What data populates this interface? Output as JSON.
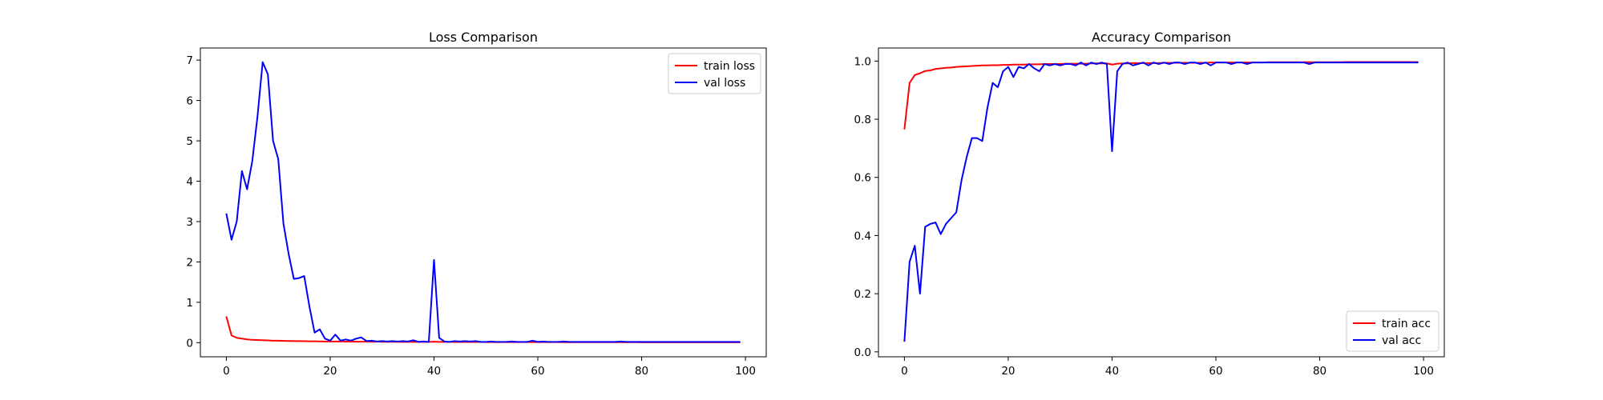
{
  "chart_data": [
    {
      "type": "line",
      "title": "Loss Comparison",
      "xlabel": "",
      "ylabel": "",
      "xlim": [
        -5,
        104
      ],
      "ylim": [
        -0.35,
        7.3
      ],
      "xticks": [
        0,
        20,
        40,
        60,
        80,
        100
      ],
      "yticks": [
        0,
        1,
        2,
        3,
        4,
        5,
        6,
        7
      ],
      "grid": false,
      "legend": "top-right",
      "series": [
        {
          "name": "train loss",
          "color": "#ff0000",
          "x": [
            0,
            1,
            2,
            3,
            4,
            5,
            6,
            7,
            8,
            9,
            10,
            11,
            12,
            13,
            14,
            15,
            16,
            17,
            18,
            19,
            20,
            21,
            22,
            23,
            24,
            25,
            26,
            27,
            28,
            29,
            30,
            31,
            32,
            33,
            34,
            35,
            36,
            37,
            38,
            39,
            40,
            41,
            42,
            43,
            44,
            45,
            46,
            47,
            48,
            49,
            50,
            51,
            52,
            53,
            54,
            55,
            56,
            57,
            58,
            59,
            60,
            61,
            62,
            63,
            64,
            65,
            66,
            67,
            68,
            69,
            70,
            71,
            72,
            73,
            74,
            75,
            76,
            77,
            78,
            79,
            80,
            81,
            82,
            83,
            84,
            85,
            86,
            87,
            88,
            89,
            90,
            91,
            92,
            93,
            94,
            95,
            96,
            97,
            98,
            99
          ],
          "values": [
            0.65,
            0.18,
            0.12,
            0.1,
            0.08,
            0.07,
            0.065,
            0.06,
            0.055,
            0.05,
            0.048,
            0.045,
            0.042,
            0.04,
            0.038,
            0.036,
            0.035,
            0.033,
            0.032,
            0.03,
            0.03,
            0.029,
            0.028,
            0.027,
            0.026,
            0.025,
            0.025,
            0.024,
            0.023,
            0.023,
            0.022,
            0.022,
            0.021,
            0.021,
            0.02,
            0.02,
            0.02,
            0.019,
            0.019,
            0.019,
            0.025,
            0.02,
            0.018,
            0.018,
            0.017,
            0.017,
            0.017,
            0.016,
            0.016,
            0.016,
            0.015,
            0.015,
            0.015,
            0.015,
            0.014,
            0.014,
            0.014,
            0.014,
            0.014,
            0.013,
            0.013,
            0.013,
            0.013,
            0.013,
            0.013,
            0.012,
            0.012,
            0.012,
            0.012,
            0.012,
            0.012,
            0.012,
            0.011,
            0.011,
            0.011,
            0.011,
            0.011,
            0.011,
            0.011,
            0.011,
            0.01,
            0.01,
            0.01,
            0.01,
            0.01,
            0.01,
            0.01,
            0.01,
            0.01,
            0.01,
            0.01,
            0.01,
            0.01,
            0.01,
            0.01,
            0.01,
            0.01,
            0.01,
            0.01,
            0.01
          ]
        },
        {
          "name": "val loss",
          "color": "#0000ff",
          "x": [
            0,
            1,
            2,
            3,
            4,
            5,
            6,
            7,
            8,
            9,
            10,
            11,
            12,
            13,
            14,
            15,
            16,
            17,
            18,
            19,
            20,
            21,
            22,
            23,
            24,
            25,
            26,
            27,
            28,
            29,
            30,
            31,
            32,
            33,
            34,
            35,
            36,
            37,
            38,
            39,
            40,
            41,
            42,
            43,
            44,
            45,
            46,
            47,
            48,
            49,
            50,
            51,
            52,
            53,
            54,
            55,
            56,
            57,
            58,
            59,
            60,
            61,
            62,
            63,
            64,
            65,
            66,
            67,
            68,
            69,
            70,
            71,
            72,
            73,
            74,
            75,
            76,
            77,
            78,
            79,
            80,
            81,
            82,
            83,
            84,
            85,
            86,
            87,
            88,
            89,
            90,
            91,
            92,
            93,
            94,
            95,
            96,
            97,
            98,
            99
          ],
          "values": [
            3.2,
            2.55,
            3.0,
            4.25,
            3.8,
            4.5,
            5.6,
            6.95,
            6.65,
            5.0,
            4.55,
            2.95,
            2.2,
            1.58,
            1.6,
            1.65,
            0.9,
            0.25,
            0.33,
            0.1,
            0.05,
            0.2,
            0.05,
            0.08,
            0.05,
            0.1,
            0.13,
            0.04,
            0.05,
            0.03,
            0.04,
            0.03,
            0.04,
            0.03,
            0.04,
            0.03,
            0.06,
            0.02,
            0.03,
            0.02,
            2.05,
            0.12,
            0.03,
            0.02,
            0.04,
            0.03,
            0.04,
            0.03,
            0.04,
            0.02,
            0.02,
            0.03,
            0.02,
            0.02,
            0.02,
            0.03,
            0.02,
            0.02,
            0.02,
            0.05,
            0.02,
            0.03,
            0.02,
            0.02,
            0.02,
            0.03,
            0.02,
            0.02,
            0.02,
            0.02,
            0.02,
            0.02,
            0.02,
            0.02,
            0.02,
            0.02,
            0.03,
            0.02,
            0.02,
            0.02,
            0.02,
            0.02,
            0.02,
            0.02,
            0.02,
            0.02,
            0.02,
            0.02,
            0.02,
            0.02,
            0.02,
            0.02,
            0.02,
            0.02,
            0.02,
            0.02,
            0.02,
            0.02,
            0.02,
            0.02
          ]
        }
      ]
    },
    {
      "type": "line",
      "title": "Accuracy Comparison",
      "xlabel": "",
      "ylabel": "",
      "xlim": [
        -5,
        104
      ],
      "ylim": [
        -0.017,
        1.045
      ],
      "xticks": [
        0,
        20,
        40,
        60,
        80,
        100
      ],
      "yticks": [
        0.0,
        0.2,
        0.4,
        0.6,
        0.8,
        1.0
      ],
      "yticklabels": [
        "0.0",
        "0.2",
        "0.4",
        "0.6",
        "0.8",
        "1.0"
      ],
      "grid": false,
      "legend": "bottom-right",
      "series": [
        {
          "name": "train acc",
          "color": "#ff0000",
          "x": [
            0,
            1,
            2,
            3,
            4,
            5,
            6,
            7,
            8,
            9,
            10,
            11,
            12,
            13,
            14,
            15,
            16,
            17,
            18,
            19,
            20,
            21,
            22,
            23,
            24,
            25,
            26,
            27,
            28,
            29,
            30,
            31,
            32,
            33,
            34,
            35,
            36,
            37,
            38,
            39,
            40,
            41,
            42,
            43,
            44,
            45,
            46,
            47,
            48,
            49,
            50,
            51,
            52,
            53,
            54,
            55,
            56,
            57,
            58,
            59,
            60,
            61,
            62,
            63,
            64,
            65,
            66,
            67,
            68,
            69,
            70,
            71,
            72,
            73,
            74,
            75,
            76,
            77,
            78,
            79,
            80,
            81,
            82,
            83,
            84,
            85,
            86,
            87,
            88,
            89,
            90,
            91,
            92,
            93,
            94,
            95,
            96,
            97,
            98,
            99
          ],
          "values": [
            0.765,
            0.925,
            0.952,
            0.958,
            0.966,
            0.968,
            0.973,
            0.975,
            0.977,
            0.978,
            0.98,
            0.981,
            0.982,
            0.983,
            0.984,
            0.985,
            0.985,
            0.986,
            0.986,
            0.987,
            0.987,
            0.988,
            0.988,
            0.988,
            0.989,
            0.989,
            0.989,
            0.99,
            0.99,
            0.99,
            0.99,
            0.991,
            0.991,
            0.991,
            0.991,
            0.991,
            0.992,
            0.992,
            0.992,
            0.992,
            0.988,
            0.991,
            0.992,
            0.992,
            0.993,
            0.993,
            0.993,
            0.993,
            0.993,
            0.993,
            0.994,
            0.994,
            0.994,
            0.994,
            0.994,
            0.994,
            0.994,
            0.994,
            0.994,
            0.995,
            0.995,
            0.995,
            0.995,
            0.995,
            0.995,
            0.995,
            0.995,
            0.995,
            0.995,
            0.995,
            0.996,
            0.996,
            0.996,
            0.996,
            0.996,
            0.996,
            0.996,
            0.996,
            0.996,
            0.996,
            0.996,
            0.996,
            0.996,
            0.996,
            0.996,
            0.997,
            0.997,
            0.997,
            0.997,
            0.997,
            0.997,
            0.997,
            0.997,
            0.997,
            0.997,
            0.997,
            0.997,
            0.997,
            0.997,
            0.997
          ]
        },
        {
          "name": "val acc",
          "color": "#0000ff",
          "x": [
            0,
            1,
            2,
            3,
            4,
            5,
            6,
            7,
            8,
            9,
            10,
            11,
            12,
            13,
            14,
            15,
            16,
            17,
            18,
            19,
            20,
            21,
            22,
            23,
            24,
            25,
            26,
            27,
            28,
            29,
            30,
            31,
            32,
            33,
            34,
            35,
            36,
            37,
            38,
            39,
            40,
            41,
            42,
            43,
            44,
            45,
            46,
            47,
            48,
            49,
            50,
            51,
            52,
            53,
            54,
            55,
            56,
            57,
            58,
            59,
            60,
            61,
            62,
            63,
            64,
            65,
            66,
            67,
            68,
            69,
            70,
            71,
            72,
            73,
            74,
            75,
            76,
            77,
            78,
            79,
            80,
            81,
            82,
            83,
            84,
            85,
            86,
            87,
            88,
            89,
            90,
            91,
            92,
            93,
            94,
            95,
            96,
            97,
            98,
            99
          ],
          "values": [
            0.035,
            0.31,
            0.365,
            0.2,
            0.43,
            0.44,
            0.445,
            0.405,
            0.44,
            0.46,
            0.48,
            0.59,
            0.67,
            0.735,
            0.735,
            0.725,
            0.84,
            0.925,
            0.91,
            0.965,
            0.98,
            0.945,
            0.98,
            0.975,
            0.99,
            0.975,
            0.965,
            0.99,
            0.985,
            0.99,
            0.985,
            0.99,
            0.99,
            0.985,
            0.995,
            0.985,
            0.995,
            0.99,
            0.995,
            0.99,
            0.69,
            0.965,
            0.99,
            0.995,
            0.985,
            0.99,
            0.995,
            0.985,
            0.995,
            0.99,
            0.995,
            0.99,
            0.995,
            0.995,
            0.99,
            0.995,
            0.995,
            0.99,
            0.995,
            0.985,
            0.995,
            0.995,
            0.995,
            0.99,
            0.995,
            0.995,
            0.99,
            0.995,
            0.995,
            0.995,
            0.995,
            0.995,
            0.995,
            0.995,
            0.995,
            0.995,
            0.995,
            0.995,
            0.99,
            0.995,
            0.995,
            0.995,
            0.995,
            0.995,
            0.995,
            0.995,
            0.995,
            0.995,
            0.995,
            0.995,
            0.995,
            0.995,
            0.995,
            0.995,
            0.995,
            0.995,
            0.995,
            0.995,
            0.995,
            0.995
          ]
        }
      ]
    }
  ]
}
